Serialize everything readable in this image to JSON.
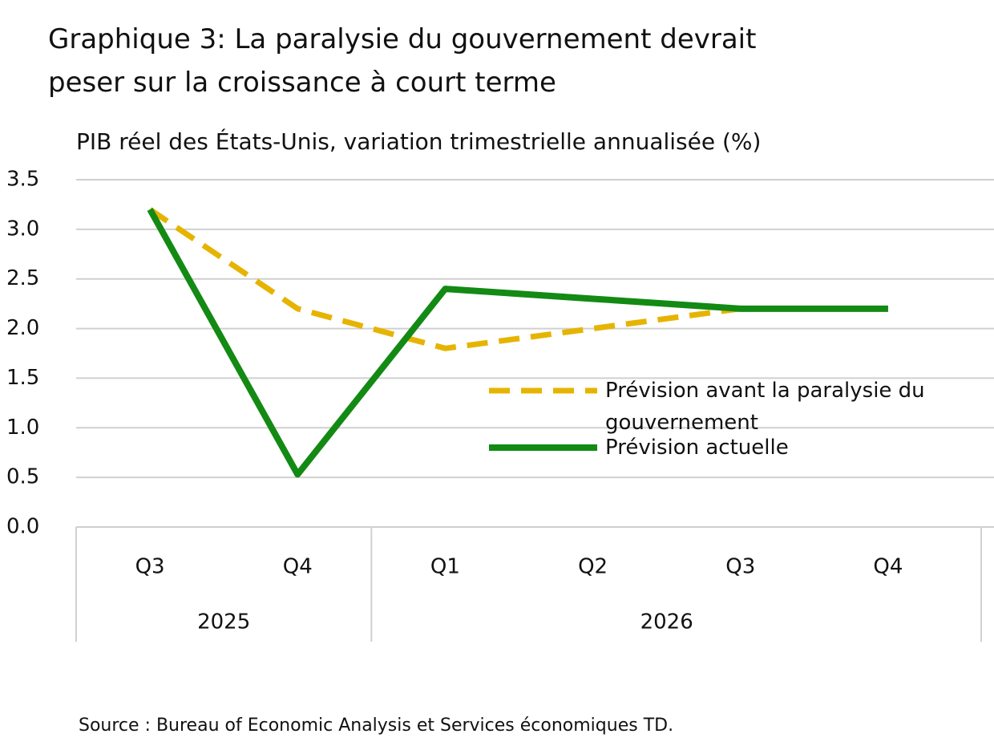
{
  "chart_data": {
    "type": "line",
    "title": "Graphique 3: La paralysie du gouvernement devrait peser sur la croissance à court terme",
    "subtitle": "PIB réel des États-Unis, variation trimestrielle annualisée (%)",
    "categories": [
      "Q3",
      "Q4",
      "Q1",
      "Q2",
      "Q3",
      "Q4"
    ],
    "category_groups": [
      "2025",
      null,
      "2026",
      null,
      null,
      null
    ],
    "series": [
      {
        "name": "Prévision avant la paralysie du gouvernement",
        "color": "#e6b400",
        "dashed": true,
        "values": [
          3.2,
          2.2,
          1.8,
          2.0,
          2.2,
          2.2
        ]
      },
      {
        "name": "Prévision actuelle",
        "color": "#138a13",
        "dashed": false,
        "values": [
          3.2,
          0.53,
          2.4,
          2.3,
          2.2,
          2.2
        ]
      }
    ],
    "ylim": [
      0,
      3.5
    ],
    "yticks": [
      {
        "value": 0,
        "label": "0.0"
      },
      0.5,
      {
        "value": 1,
        "label": "1.0"
      },
      1.5,
      {
        "value": 2,
        "label": "2.0"
      },
      2.5,
      {
        "value": 3,
        "label": "3.0"
      },
      3.5
    ],
    "grid": true,
    "source": "Source : Bureau of Economic Analysis et Services économiques TD."
  }
}
